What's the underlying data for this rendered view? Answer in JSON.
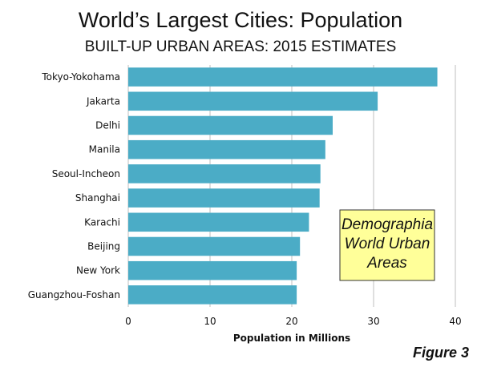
{
  "chart_data": {
    "type": "bar",
    "orientation": "horizontal",
    "title": "World’s Largest Cities: Population",
    "subtitle": "BUILT-UP URBAN AREAS: 2015 ESTIMATES",
    "xlabel": "Population in Millions",
    "ylabel": "",
    "categories": [
      "Tokyo-Yokohama",
      "Jakarta",
      "Delhi",
      "Manila",
      "Seoul-Incheon",
      "Shanghai",
      "Karachi",
      "Beijing",
      "New York",
      "Guangzhou-Foshan"
    ],
    "values": [
      37.8,
      30.5,
      25.0,
      24.1,
      23.5,
      23.4,
      22.1,
      21.0,
      20.6,
      20.6
    ],
    "xlim": [
      0,
      40
    ],
    "x_ticks": [
      0,
      10,
      20,
      30,
      40
    ],
    "grid": true,
    "bar_color": "#4BACC6",
    "annotation": {
      "lines": [
        "Demographia",
        "World Urban",
        "Areas"
      ],
      "background": "#FFFF99"
    },
    "figure_label": "Figure 3"
  }
}
